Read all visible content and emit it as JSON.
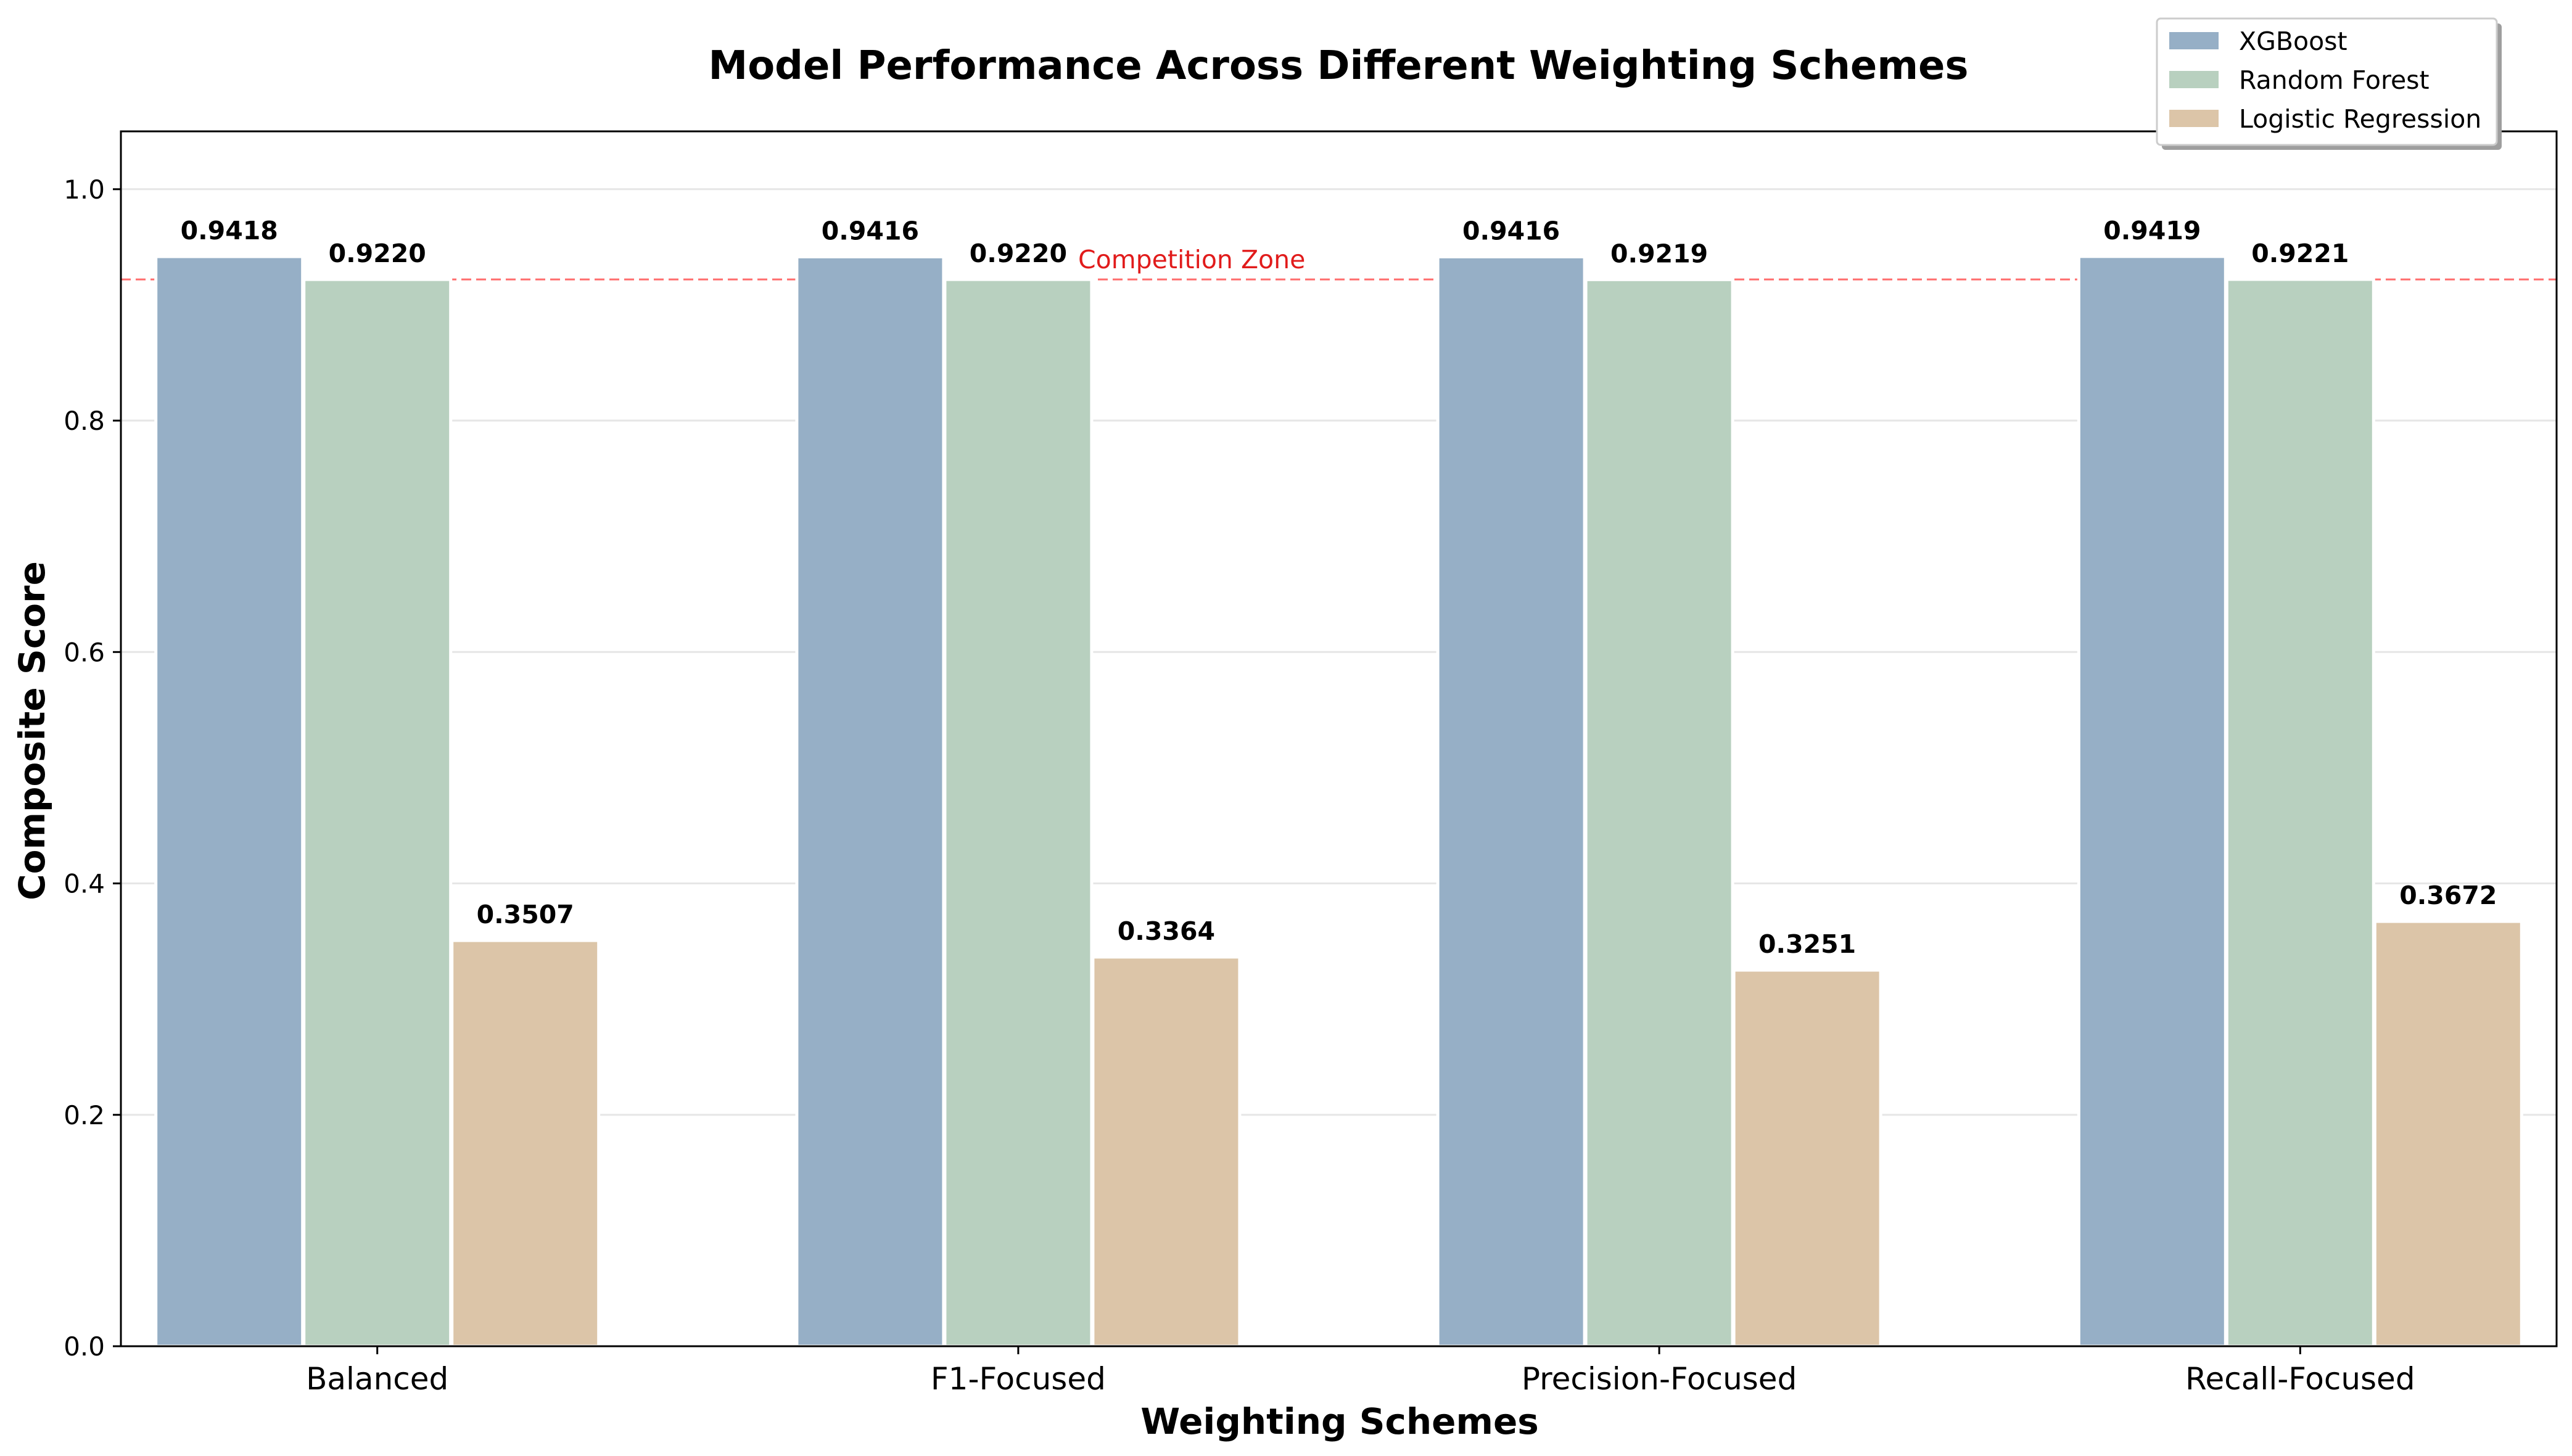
{
  "chart_data": {
    "type": "bar",
    "title": "Model Performance Across Different Weighting Schemes",
    "xlabel": "Weighting Schemes",
    "ylabel": "Composite Score",
    "ylim": [
      0,
      1.05
    ],
    "yticks": [
      0.0,
      0.2,
      0.4,
      0.6,
      0.8,
      1.0
    ],
    "ytick_labels": [
      "0.0",
      "0.2",
      "0.4",
      "0.6",
      "0.8",
      "1.0"
    ],
    "grid": "y",
    "legend_position": "top-right",
    "categories": [
      "Balanced",
      "F1-Focused",
      "Precision-Focused",
      "Recall-Focused"
    ],
    "series": [
      {
        "name": "XGBoost",
        "color": "#96afc6",
        "values": [
          0.9418,
          0.9416,
          0.9416,
          0.9419
        ],
        "labels": [
          "0.9418",
          "0.9416",
          "0.9416",
          "0.9419"
        ]
      },
      {
        "name": "Random Forest",
        "color": "#b8d0bf",
        "values": [
          0.922,
          0.922,
          0.9219,
          0.9221
        ],
        "labels": [
          "0.9220",
          "0.9220",
          "0.9219",
          "0.9221"
        ]
      },
      {
        "name": "Logistic Regression",
        "color": "#dcc5a8",
        "values": [
          0.3507,
          0.3364,
          0.3251,
          0.3672
        ],
        "labels": [
          "0.3507",
          "0.3364",
          "0.3251",
          "0.3672"
        ]
      }
    ],
    "reference_line": {
      "value": 0.922,
      "label": "Competition Zone",
      "color": "#ff3b3b"
    }
  }
}
